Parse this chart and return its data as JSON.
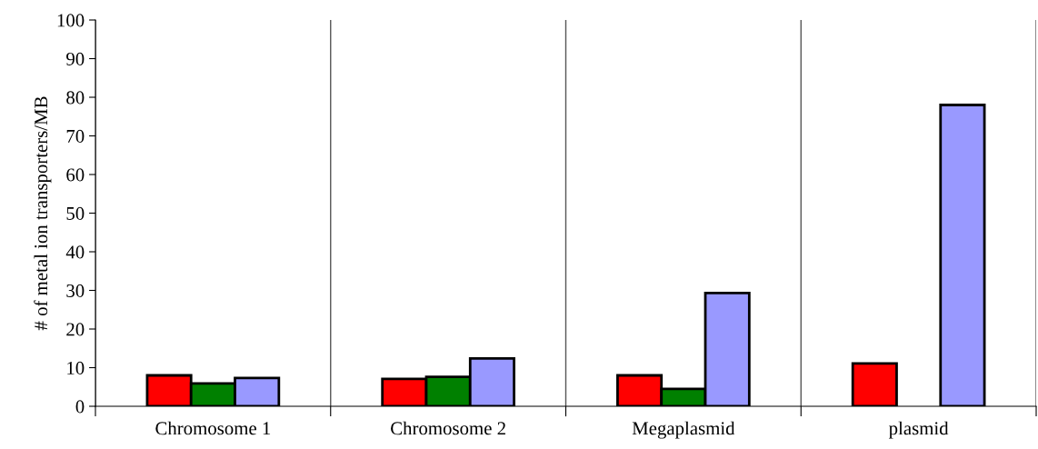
{
  "chart_data": {
    "type": "bar",
    "ylabel": "# of metal ion transporters/MB",
    "categories": [
      "Chromosome 1",
      "Chromosome 2",
      "Megaplasmid",
      "plasmid"
    ],
    "series": [
      {
        "color": "#ff0000",
        "values": [
          8.0,
          7.1,
          8.0,
          11.1
        ]
      },
      {
        "color": "#008000",
        "values": [
          5.9,
          7.6,
          4.5,
          null
        ]
      },
      {
        "color": "#9999ff",
        "values": [
          7.3,
          12.4,
          29.3,
          78.0
        ]
      }
    ],
    "ylim": [
      0,
      100
    ],
    "yticks": [
      0,
      10,
      20,
      30,
      40,
      50,
      60,
      70,
      80,
      90,
      100
    ],
    "grid": "x",
    "legend": false
  }
}
